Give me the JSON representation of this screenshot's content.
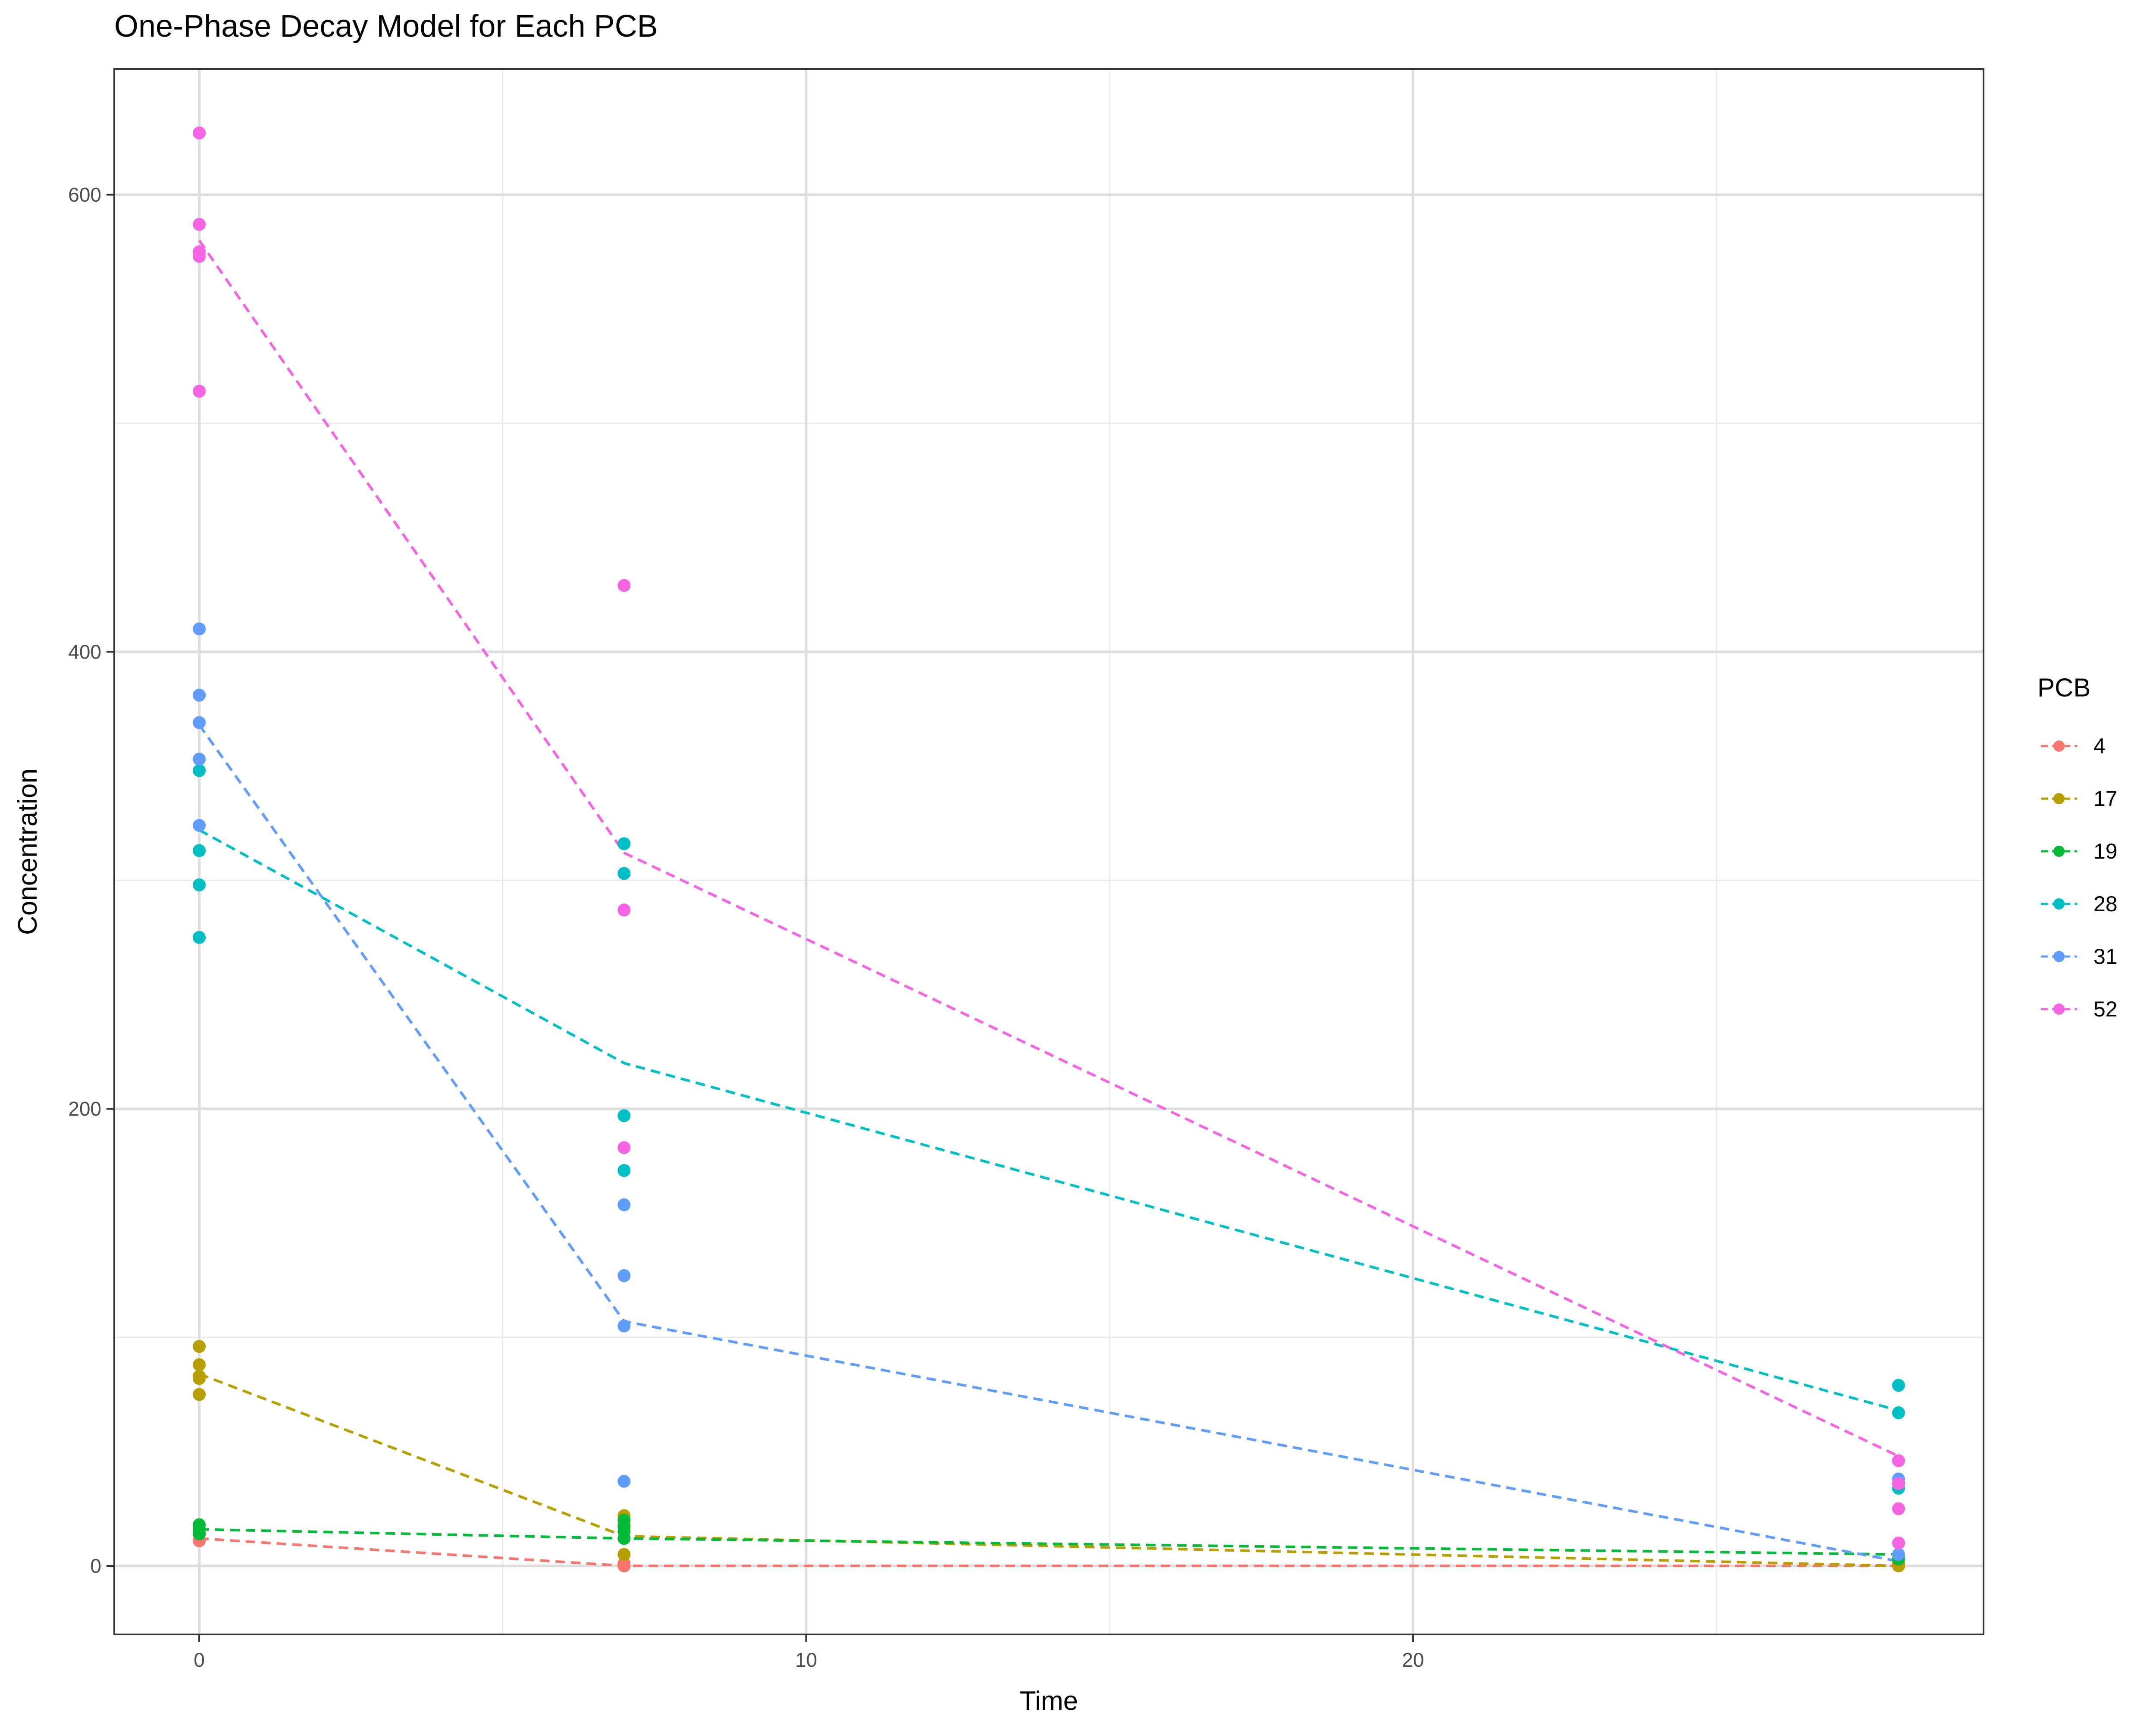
{
  "chart_data": {
    "type": "scatter",
    "title": "One-Phase Decay Model for Each PCB",
    "xlabel": "Time",
    "ylabel": "Concentration",
    "xlim": [
      -1.4,
      29.4
    ],
    "ylim": [
      -30,
      655
    ],
    "x_ticks": [
      0,
      10,
      20
    ],
    "y_ticks": [
      0,
      200,
      400,
      600
    ],
    "x_minor": [
      5,
      15,
      25
    ],
    "y_minor": [
      100,
      300,
      500
    ],
    "grid": true,
    "legend_position": "right",
    "legend_title": "PCB",
    "series": [
      {
        "name": "4",
        "color": "#F8766D",
        "points": [
          [
            0,
            11
          ],
          [
            0,
            14
          ],
          [
            0,
            16
          ],
          [
            7,
            0
          ],
          [
            7,
            1
          ],
          [
            28,
            0
          ],
          [
            28,
            1
          ]
        ],
        "fit": [
          [
            0,
            12
          ],
          [
            7,
            0
          ],
          [
            28,
            0
          ]
        ]
      },
      {
        "name": "17",
        "color": "#B79F00",
        "points": [
          [
            0,
            96
          ],
          [
            0,
            88
          ],
          [
            0,
            83
          ],
          [
            0,
            75
          ],
          [
            0,
            82
          ],
          [
            7,
            22
          ],
          [
            7,
            18
          ],
          [
            7,
            5
          ],
          [
            28,
            0
          ],
          [
            28,
            1
          ]
        ],
        "fit": [
          [
            0,
            84
          ],
          [
            7,
            13
          ],
          [
            28,
            0
          ]
        ]
      },
      {
        "name": "19",
        "color": "#00BA38",
        "points": [
          [
            0,
            18
          ],
          [
            0,
            16
          ],
          [
            0,
            14
          ],
          [
            7,
            20
          ],
          [
            7,
            17
          ],
          [
            7,
            15
          ],
          [
            7,
            12
          ],
          [
            28,
            5
          ],
          [
            28,
            3
          ]
        ],
        "fit": [
          [
            0,
            16
          ],
          [
            7,
            12
          ],
          [
            28,
            5
          ]
        ]
      },
      {
        "name": "28",
        "color": "#00BFC4",
        "points": [
          [
            0,
            348
          ],
          [
            0,
            313
          ],
          [
            0,
            298
          ],
          [
            0,
            275
          ],
          [
            7,
            316
          ],
          [
            7,
            303
          ],
          [
            7,
            197
          ],
          [
            7,
            173
          ],
          [
            28,
            79
          ],
          [
            28,
            67
          ],
          [
            28,
            34
          ]
        ],
        "fit": [
          [
            0,
            322
          ],
          [
            7,
            220
          ],
          [
            28,
            68
          ]
        ]
      },
      {
        "name": "31",
        "color": "#619CFF",
        "points": [
          [
            0,
            410
          ],
          [
            0,
            381
          ],
          [
            0,
            369
          ],
          [
            0,
            353
          ],
          [
            0,
            324
          ],
          [
            7,
            158
          ],
          [
            7,
            127
          ],
          [
            7,
            105
          ],
          [
            7,
            37
          ],
          [
            28,
            38
          ],
          [
            28,
            5
          ]
        ],
        "fit": [
          [
            0,
            368
          ],
          [
            7,
            107
          ],
          [
            28,
            2
          ]
        ]
      },
      {
        "name": "52",
        "color": "#F564E3",
        "points": [
          [
            0,
            627
          ],
          [
            0,
            587
          ],
          [
            0,
            575
          ],
          [
            0,
            573
          ],
          [
            0,
            514
          ],
          [
            7,
            429
          ],
          [
            7,
            287
          ],
          [
            7,
            183
          ],
          [
            28,
            46
          ],
          [
            28,
            36
          ],
          [
            28,
            25
          ],
          [
            28,
            10
          ]
        ],
        "fit": [
          [
            0,
            580
          ],
          [
            7,
            312
          ],
          [
            28,
            48
          ]
        ]
      }
    ]
  }
}
